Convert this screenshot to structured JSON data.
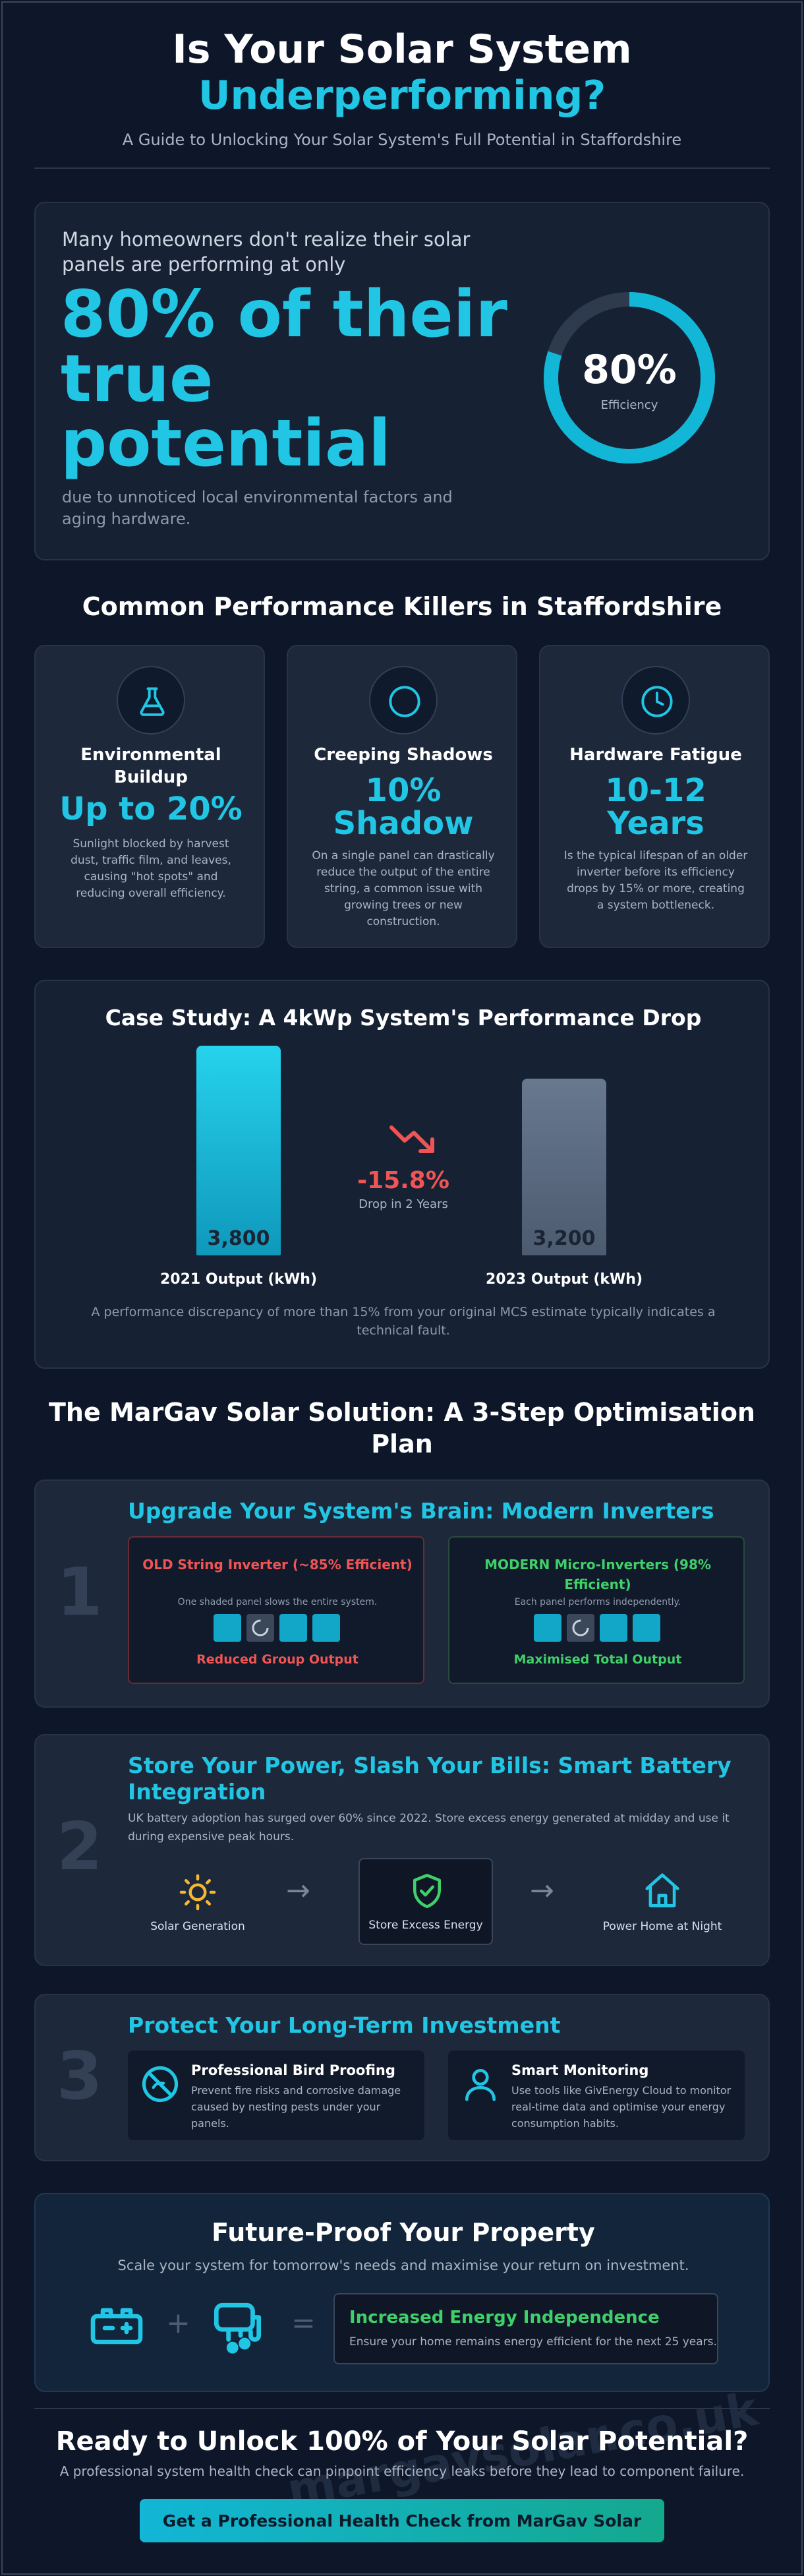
{
  "header": {
    "title_line1": "Is Your Solar System",
    "title_line2": "Underperforming?",
    "subtitle": "A Guide to Unlocking Your Solar System's Full Potential in Staffordshire"
  },
  "hero": {
    "lead": "Many homeowners don't realize their solar panels are performing at only",
    "highlight": "80% of their true potential",
    "tail": "due to unnoticed local environmental factors and aging hardware.",
    "gauge_value": "80%",
    "gauge_caption": "Efficiency",
    "gauge_fraction": 0.8
  },
  "killers": {
    "title": "Common Performance Killers in Staffordshire",
    "items": [
      {
        "icon": "flask-icon",
        "title": "Environmental Buildup",
        "value": "Up to 20%",
        "desc": "Sunlight blocked by harvest dust, traffic film, and leaves, causing \"hot spots\" and reducing overall efficiency."
      },
      {
        "icon": "circle-icon",
        "title": "Creeping Shadows",
        "value": "10% Shadow",
        "desc": "On a single panel can drastically reduce the output of the entire string, a common issue with growing trees or new construction."
      },
      {
        "icon": "clock-icon",
        "title": "Hardware Fatigue",
        "value": "10-12 Years",
        "desc": "Is the typical lifespan of an older inverter before its efficiency drops by 15% or more, creating a system bottleneck."
      }
    ]
  },
  "case_study": {
    "title": "Case Study: A 4kWp System's Performance Drop",
    "bars": [
      {
        "label": "2021 Output (kWh)",
        "value": 3800,
        "display": "3,800"
      },
      {
        "label": "2023 Output (kWh)",
        "value": 3200,
        "display": "3,200"
      }
    ],
    "drop_value": "-15.8%",
    "drop_caption": "Drop in 2 Years",
    "note": "A performance discrepancy of more than 15% from your original MCS estimate typically indicates a technical fault."
  },
  "solution": {
    "title": "The MarGav Solar Solution: A 3-Step Optimisation Plan",
    "step1": {
      "number": "1",
      "title": "Upgrade Your System's Brain: Modern Inverters",
      "old_title": "OLD String Inverter (~85% Efficient)",
      "old_desc": "One shaded panel slows the entire system.",
      "old_outcome": "Reduced Group Output",
      "new_title": "MODERN Micro-Inverters (98% Efficient)",
      "new_desc": "Each panel performs independently.",
      "new_outcome": "Maximised Total Output"
    },
    "step2": {
      "number": "2",
      "title": "Store Your Power, Slash Your Bills: Smart Battery Integration",
      "desc": "UK battery adoption has surged over 60% since 2022. Store excess energy generated at midday and use it during expensive peak hours.",
      "flow": [
        "Solar Generation",
        "Store Excess Energy",
        "Power Home at Night"
      ],
      "arrow": "→"
    },
    "step3": {
      "number": "3",
      "title": "Protect Your Long-Term Investment",
      "items": [
        {
          "title": "Professional Bird Proofing",
          "desc": "Prevent fire risks and corrosive damage caused by nesting pests under your panels."
        },
        {
          "title": "Smart Monitoring",
          "desc": "Use tools like GivEnergy Cloud to monitor real-time data and optimise your energy consumption habits."
        }
      ]
    }
  },
  "future": {
    "title": "Future-Proof Your Property",
    "subtitle": "Scale your system for tomorrow's needs and maximise your return on investment.",
    "plus": "+",
    "equals": "=",
    "result_title": "Increased Energy Independence",
    "result_desc": "Ensure your home remains energy efficient for the next 25 years."
  },
  "cta": {
    "title": "Ready to Unlock 100% of Your Solar Potential?",
    "subtitle": "A professional system health check can pinpoint efficiency leaks before they lead to component failure.",
    "button": "Get a Professional Health Check from MarGav Solar",
    "watermark": "margavsolar.co.uk"
  },
  "colors": {
    "background": "#0e1729",
    "accent": "#22c6e5",
    "danger": "#f05454",
    "success": "#3fd06a"
  }
}
